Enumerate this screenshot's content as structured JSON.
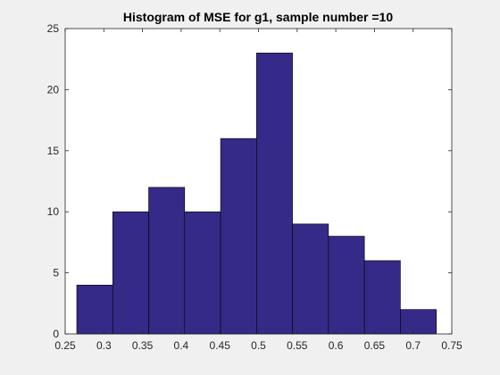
{
  "chart_data": {
    "type": "bar",
    "title": "Histogram of MSE for g1, sample number =10",
    "xlabel": "",
    "ylabel": "",
    "bin_edges": [
      0.265,
      0.3115,
      0.358,
      0.4045,
      0.451,
      0.4975,
      0.544,
      0.5905,
      0.637,
      0.6835,
      0.73
    ],
    "values": [
      4,
      10,
      12,
      10,
      16,
      23,
      9,
      8,
      6,
      2
    ],
    "xlim": [
      0.25,
      0.75
    ],
    "ylim": [
      0,
      25
    ],
    "x_ticks": [
      "0.25",
      "0.3",
      "0.35",
      "0.4",
      "0.45",
      "0.5",
      "0.55",
      "0.6",
      "0.65",
      "0.7",
      "0.75"
    ],
    "y_ticks": [
      "0",
      "5",
      "10",
      "15",
      "20",
      "25"
    ],
    "grid": false,
    "bar_color": "#352a87",
    "bar_edge_color": "#000000",
    "plot_background": "#ffffff",
    "figure_background": "#f0f0f0"
  }
}
